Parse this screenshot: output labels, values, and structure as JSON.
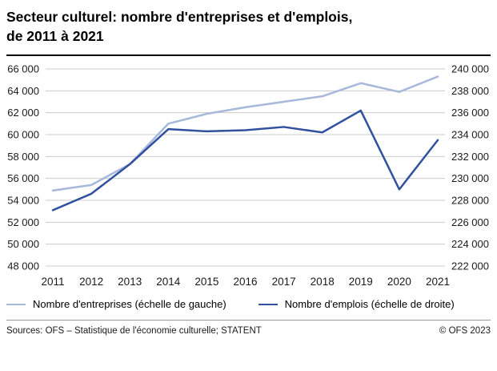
{
  "header": {
    "title_line1": "Secteur culturel: nombre d'entreprises et d'emplois,",
    "title_line2": "de 2011 à 2021"
  },
  "chart_data": {
    "type": "line",
    "title": "Secteur culturel: nombre d'entreprises et d'emplois, de 2011 à 2021",
    "x": [
      "2011",
      "2012",
      "2013",
      "2014",
      "2015",
      "2016",
      "2017",
      "2018",
      "2019",
      "2020",
      "2021"
    ],
    "series": [
      {
        "name": "Nombre d'entreprises (échelle de gauche)",
        "axis": "left",
        "color": "#a7b8da",
        "values": [
          54900,
          55400,
          57300,
          61000,
          61900,
          62500,
          63000,
          63500,
          64700,
          63900,
          65300
        ]
      },
      {
        "name": "Nombre d'emplois (échelle de droite)",
        "axis": "right",
        "color": "#31519e",
        "values": [
          227100,
          228600,
          231300,
          234500,
          234300,
          234400,
          234700,
          234200,
          236200,
          229000,
          233500
        ]
      }
    ],
    "left_axis": {
      "min": 48000,
      "max": 66000,
      "step": 2000,
      "tick_labels": [
        "48 000",
        "50 000",
        "52 000",
        "54 000",
        "56 000",
        "58 000",
        "60 000",
        "62 000",
        "64 000",
        "66 000"
      ]
    },
    "right_axis": {
      "min": 222000,
      "max": 240000,
      "step": 2000,
      "tick_labels": [
        "222 000",
        "224 000",
        "226 000",
        "228 000",
        "230 000",
        "232 000",
        "234 000",
        "236 000",
        "238 000",
        "240 000"
      ]
    },
    "grid": "horizontal",
    "legend_position": "bottom",
    "grid_color": "#cccccc",
    "tick_color": "#1a1a1a"
  },
  "footer": {
    "sources": "Sources: OFS – Statistique de l'économie culturelle; STATENT",
    "copyright": "© OFS 2023"
  }
}
